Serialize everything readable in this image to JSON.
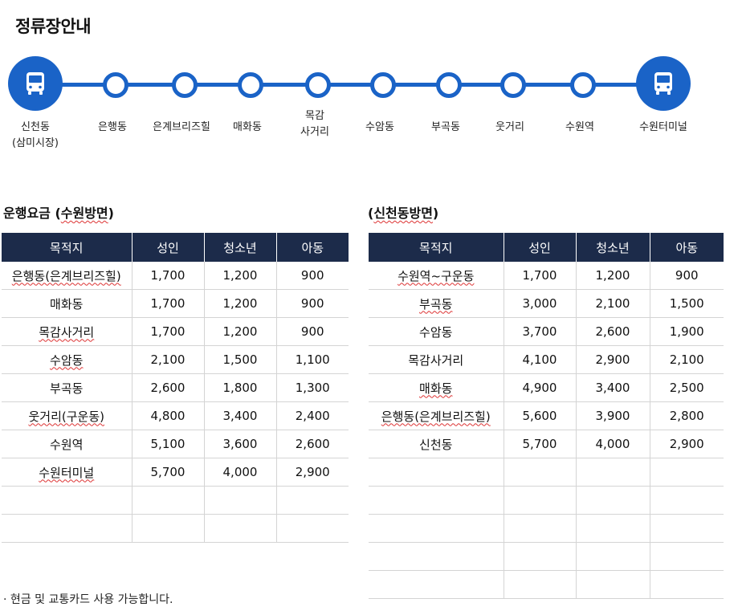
{
  "title": "정류장안내",
  "stops": [
    {
      "name": "신천동\n(삼미시장)",
      "terminal": true,
      "icon": "bus-icon"
    },
    {
      "name": "은행동",
      "terminal": false
    },
    {
      "name": "은계브리즈힐",
      "terminal": false
    },
    {
      "name": "매화동",
      "terminal": false
    },
    {
      "name": "목감\n사거리",
      "terminal": false
    },
    {
      "name": "수암동",
      "terminal": false
    },
    {
      "name": "부곡동",
      "terminal": false
    },
    {
      "name": "웃거리",
      "terminal": false
    },
    {
      "name": "수원역",
      "terminal": false
    },
    {
      "name": "수원터미널",
      "terminal": true,
      "icon": "bus-icon"
    }
  ],
  "left": {
    "title_prefix": "운행요금 (",
    "title_em": "수원방면",
    "title_suffix": ")",
    "headers": [
      "목적지",
      "성인",
      "청소년",
      "아동"
    ],
    "rows": [
      [
        "은행동(은계브리즈힐)",
        "1,700",
        "1,200",
        "900"
      ],
      [
        "매화동",
        "1,700",
        "1,200",
        "900"
      ],
      [
        "목감사거리",
        "1,700",
        "1,200",
        "900"
      ],
      [
        "수암동",
        "2,100",
        "1,500",
        "1,100"
      ],
      [
        "부곡동",
        "2,600",
        "1,800",
        "1,300"
      ],
      [
        "웃거리(구운동)",
        "4,800",
        "3,400",
        "2,400"
      ],
      [
        "수원역",
        "5,100",
        "3,600",
        "2,600"
      ],
      [
        "수원터미널",
        "5,700",
        "4,000",
        "2,900"
      ],
      [
        "",
        "",
        "",
        ""
      ],
      [
        "",
        "",
        "",
        ""
      ]
    ]
  },
  "right": {
    "title_prefix": "(",
    "title_em": "신천동방면",
    "title_suffix": ")",
    "headers": [
      "목적지",
      "성인",
      "청소년",
      "아동"
    ],
    "rows": [
      [
        "수원역~구운동",
        "1,700",
        "1,200",
        "900"
      ],
      [
        "부곡동",
        "3,000",
        "2,100",
        "1,500"
      ],
      [
        "수암동",
        "3,700",
        "2,600",
        "1,900"
      ],
      [
        "목감사거리",
        "4,100",
        "2,900",
        "2,100"
      ],
      [
        "매화동",
        "4,900",
        "3,400",
        "2,500"
      ],
      [
        "은행동(은계브리즈힐)",
        "5,600",
        "3,900",
        "2,800"
      ],
      [
        "신천동",
        "5,700",
        "4,000",
        "2,900"
      ],
      [
        "",
        "",
        "",
        ""
      ],
      [
        "",
        "",
        "",
        ""
      ],
      [
        "",
        "",
        "",
        ""
      ],
      [
        "",
        "",
        "",
        ""
      ],
      [
        "",
        "",
        "",
        ""
      ]
    ]
  },
  "note": "· 현금 및 교통카드 사용 가능합니다.",
  "colors": {
    "route": "#1a63c7",
    "header_bg": "#1c2b4a"
  }
}
